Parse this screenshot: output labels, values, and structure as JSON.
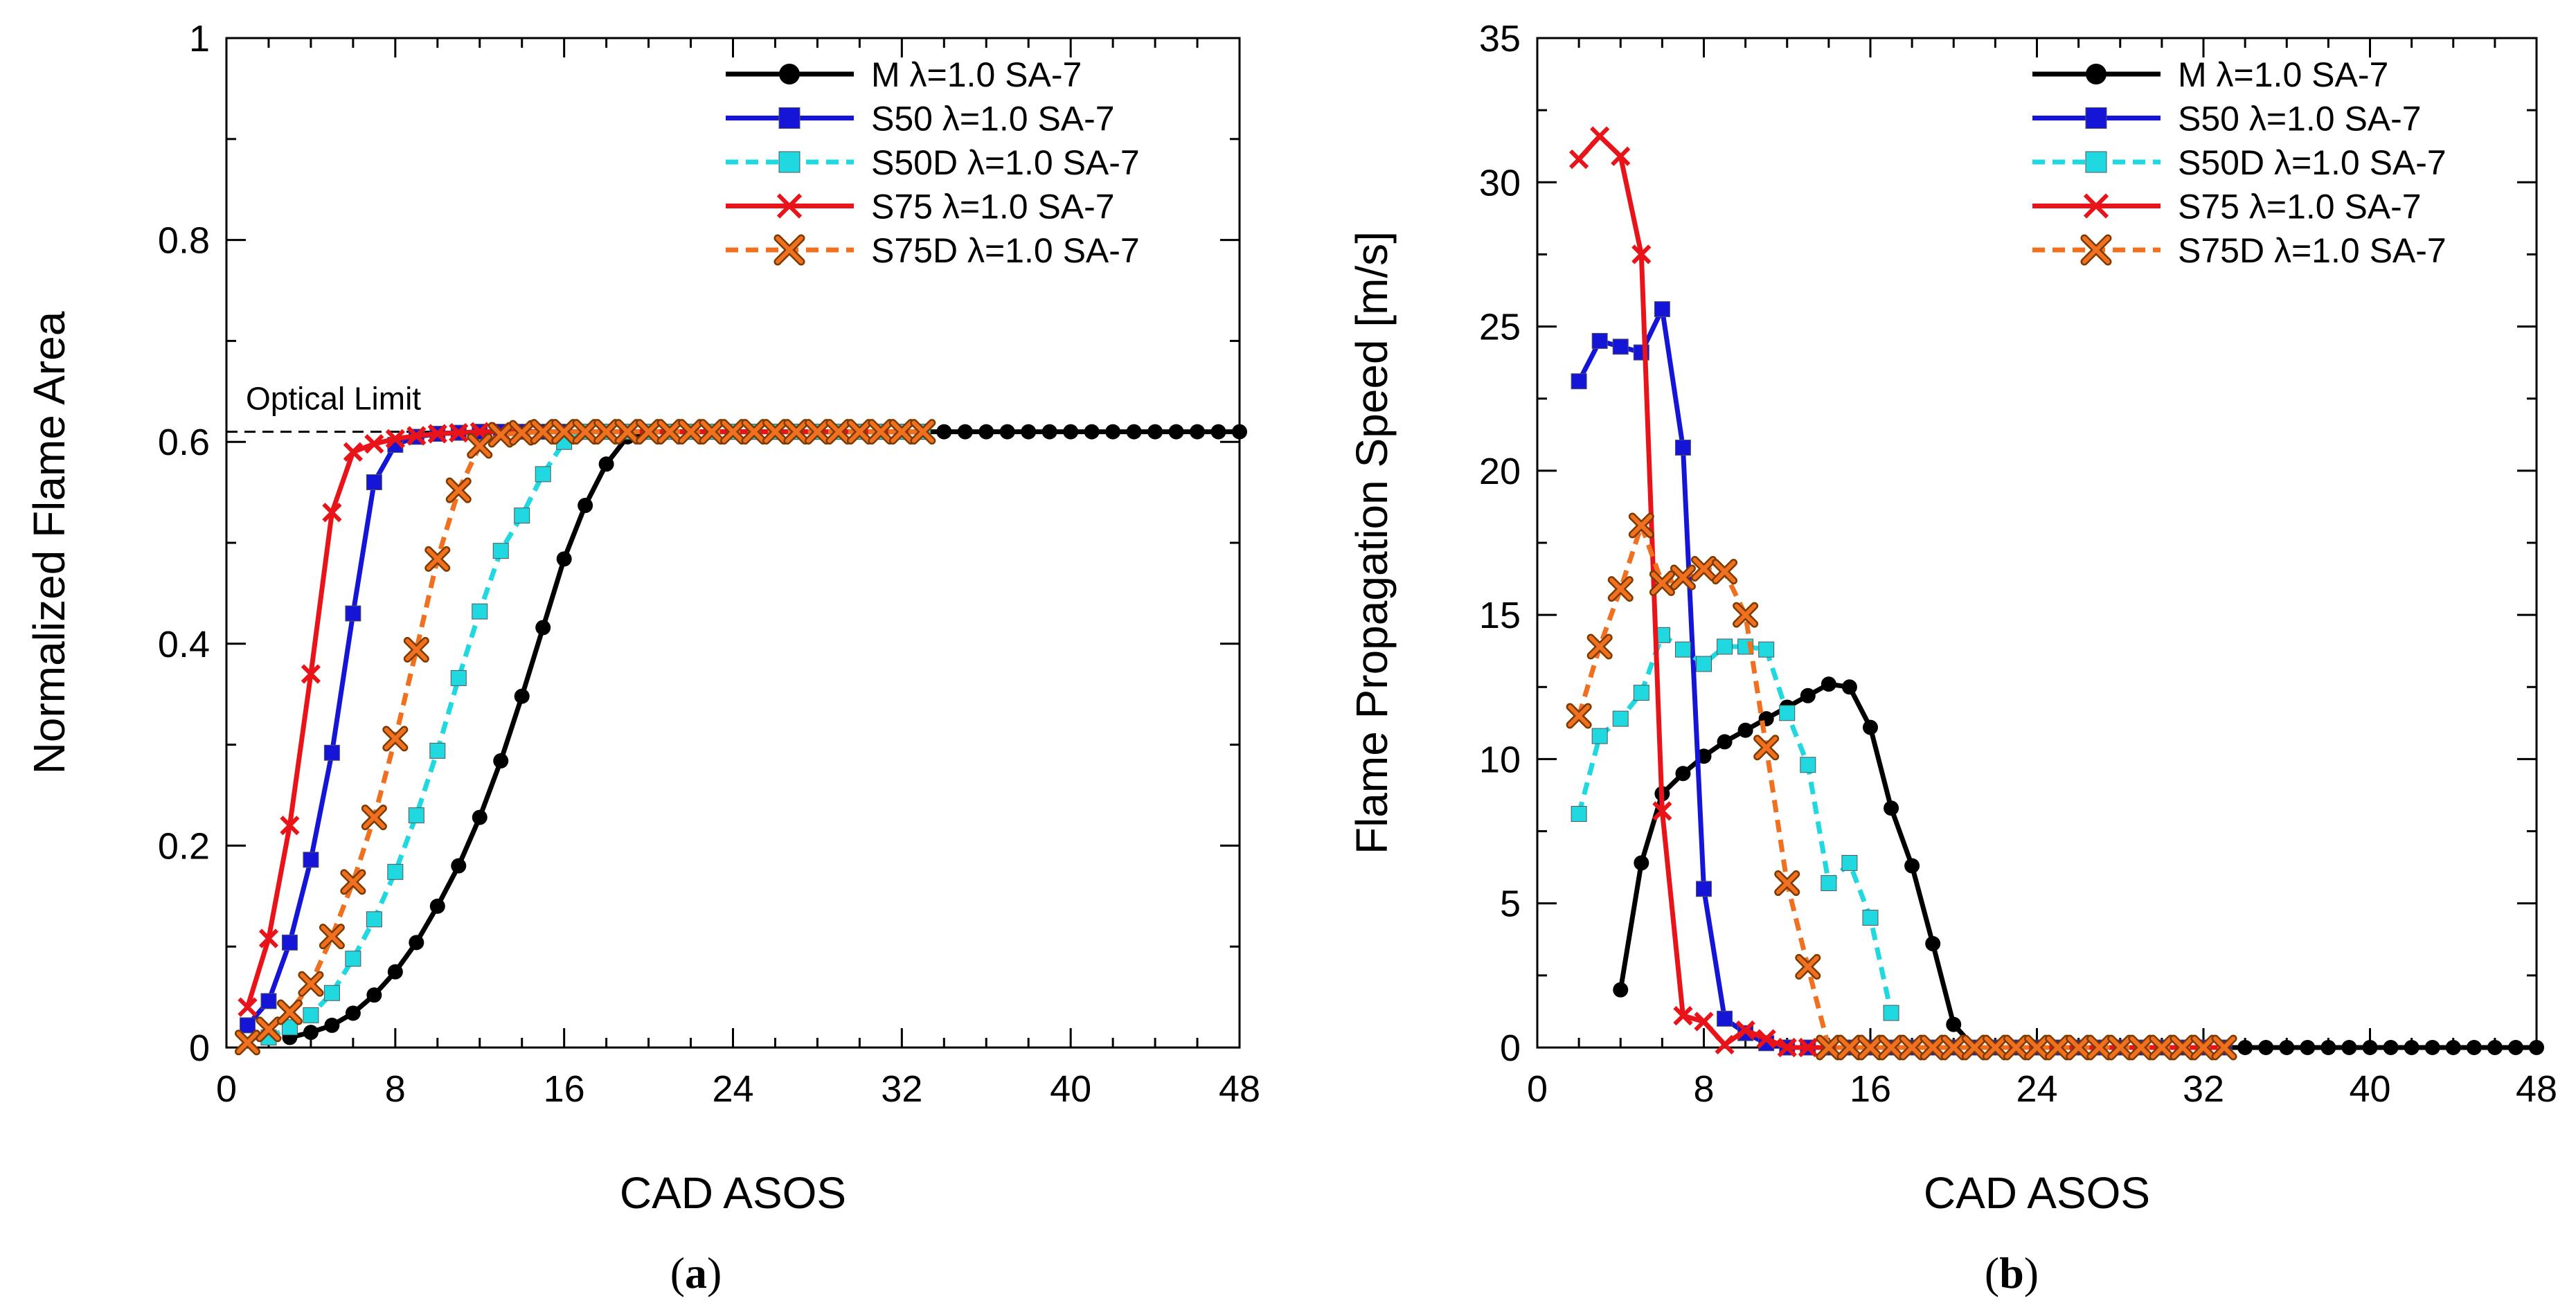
{
  "chart_data": [
    {
      "type": "line",
      "panel_label": "a",
      "title": "",
      "xlabel": "CAD ASOS",
      "ylabel": "Normalized Flame Area",
      "xlim": [
        0,
        48
      ],
      "ylim": [
        0,
        1
      ],
      "xticks": [
        "0",
        "8",
        "16",
        "24",
        "32",
        "40",
        "48"
      ],
      "yticks": [
        "0",
        "0.2",
        "0.4",
        "0.6",
        "0.8",
        "1"
      ],
      "legend_position": "top-right",
      "annotation": {
        "text": "Optical Limit",
        "y": 0.61
      },
      "series": [
        {
          "name": "M λ=1.0 SA-7",
          "color": "#000000",
          "dash": false,
          "marker": "circle",
          "x": [
            3,
            4,
            5,
            6,
            7,
            8,
            9,
            10,
            11,
            12,
            13,
            14,
            15,
            16,
            17,
            18,
            19,
            20,
            21,
            22,
            23,
            24,
            25,
            26,
            27,
            28,
            29,
            30,
            31,
            32,
            33,
            34,
            35,
            36,
            37,
            38,
            39,
            40,
            41,
            42,
            43,
            44,
            45,
            46,
            47,
            48
          ],
          "y": [
            0.01,
            0.015,
            0.022,
            0.034,
            0.052,
            0.075,
            0.104,
            0.14,
            0.18,
            0.228,
            0.284,
            0.348,
            0.416,
            0.484,
            0.537,
            0.578,
            0.605,
            0.61,
            0.61,
            0.61,
            0.61,
            0.61,
            0.61,
            0.61,
            0.61,
            0.61,
            0.61,
            0.61,
            0.61,
            0.61,
            0.61,
            0.61,
            0.61,
            0.61,
            0.61,
            0.61,
            0.61,
            0.61,
            0.61,
            0.61,
            0.61,
            0.61,
            0.61,
            0.61,
            0.61,
            0.61
          ]
        },
        {
          "name": "S50 λ=1.0 SA-7",
          "color": "#1515d8",
          "dash": false,
          "marker": "square",
          "x": [
            1,
            2,
            3,
            4,
            5,
            6,
            7,
            8,
            9,
            10,
            11,
            12,
            13,
            14,
            15,
            16,
            17,
            18,
            19,
            20,
            21,
            22,
            23,
            24,
            25,
            26,
            27,
            28,
            29,
            30,
            31,
            32,
            33
          ],
          "y": [
            0.022,
            0.046,
            0.104,
            0.186,
            0.292,
            0.43,
            0.56,
            0.597,
            0.605,
            0.608,
            0.609,
            0.61,
            0.61,
            0.61,
            0.61,
            0.61,
            0.61,
            0.61,
            0.61,
            0.61,
            0.61,
            0.61,
            0.61,
            0.61,
            0.61,
            0.61,
            0.61,
            0.61,
            0.61,
            0.61,
            0.61,
            0.61,
            0.61
          ]
        },
        {
          "name": "S50D λ=1.0 SA-7",
          "color": "#20d8e0",
          "dash": true,
          "marker": "square",
          "x": [
            2,
            3,
            4,
            5,
            6,
            7,
            8,
            9,
            10,
            11,
            12,
            13,
            14,
            15,
            16,
            17,
            18,
            19,
            20,
            21,
            22,
            23,
            24,
            25,
            26,
            27,
            28,
            29,
            30,
            31,
            32,
            33
          ],
          "y": [
            0.01,
            0.02,
            0.032,
            0.054,
            0.088,
            0.127,
            0.174,
            0.23,
            0.294,
            0.366,
            0.432,
            0.492,
            0.527,
            0.568,
            0.6,
            0.61,
            0.61,
            0.61,
            0.61,
            0.61,
            0.61,
            0.61,
            0.61,
            0.61,
            0.61,
            0.61,
            0.61,
            0.61,
            0.61,
            0.61,
            0.61,
            0.61
          ]
        },
        {
          "name": "S75 λ=1.0 SA-7",
          "color": "#e8141a",
          "dash": false,
          "marker": "x",
          "x": [
            1,
            2,
            3,
            4,
            5,
            6,
            7,
            8,
            9,
            10,
            11,
            12,
            13,
            14,
            15,
            16,
            17,
            18,
            19,
            20,
            21,
            22,
            23,
            24,
            25,
            26,
            27,
            28,
            29,
            30,
            31,
            32,
            33
          ],
          "y": [
            0.04,
            0.108,
            0.22,
            0.37,
            0.53,
            0.59,
            0.598,
            0.603,
            0.606,
            0.608,
            0.609,
            0.61,
            0.61,
            0.61,
            0.61,
            0.61,
            0.61,
            0.61,
            0.61,
            0.61,
            0.61,
            0.61,
            0.61,
            0.61,
            0.61,
            0.61,
            0.61,
            0.61,
            0.61,
            0.61,
            0.61,
            0.61,
            0.61
          ]
        },
        {
          "name": "S75D λ=1.0 SA-7",
          "color": "#f07020",
          "dash": true,
          "marker": "xbox",
          "x": [
            1,
            2,
            3,
            4,
            5,
            6,
            7,
            8,
            9,
            10,
            11,
            12,
            13,
            14,
            15,
            16,
            17,
            18,
            19,
            20,
            21,
            22,
            23,
            24,
            25,
            26,
            27,
            28,
            29,
            30,
            31,
            32,
            33
          ],
          "y": [
            0.005,
            0.018,
            0.035,
            0.063,
            0.11,
            0.164,
            0.228,
            0.306,
            0.394,
            0.484,
            0.552,
            0.596,
            0.607,
            0.609,
            0.61,
            0.61,
            0.61,
            0.61,
            0.61,
            0.61,
            0.61,
            0.61,
            0.61,
            0.61,
            0.61,
            0.61,
            0.61,
            0.61,
            0.61,
            0.61,
            0.61,
            0.61,
            0.61
          ]
        }
      ]
    },
    {
      "type": "line",
      "panel_label": "b",
      "title": "",
      "xlabel": "CAD ASOS",
      "ylabel": "Flame Propagation Speed [m/s]",
      "xlim": [
        0,
        48
      ],
      "ylim": [
        0,
        35
      ],
      "xticks": [
        "0",
        "8",
        "16",
        "24",
        "32",
        "40",
        "48"
      ],
      "yticks": [
        "0",
        "5",
        "10",
        "15",
        "20",
        "25",
        "30",
        "35"
      ],
      "legend_position": "top-right",
      "series": [
        {
          "name": "M λ=1.0 SA-7",
          "color": "#000000",
          "dash": false,
          "marker": "circle",
          "x": [
            4,
            5,
            6,
            7,
            8,
            9,
            10,
            11,
            12,
            13,
            14,
            15,
            16,
            17,
            18,
            19,
            20,
            21,
            22,
            23,
            24,
            25,
            26,
            27,
            28,
            29,
            30,
            31,
            32,
            33,
            34,
            35,
            36,
            37,
            38,
            39,
            40,
            41,
            42,
            43,
            44,
            45,
            46,
            47,
            48
          ],
          "y": [
            2,
            6.4,
            8.8,
            9.5,
            10.1,
            10.6,
            11,
            11.4,
            11.8,
            12.2,
            12.6,
            12.5,
            11.1,
            8.3,
            6.3,
            3.6,
            0.8,
            0,
            0,
            0,
            0,
            0,
            0,
            0,
            0,
            0,
            0,
            0,
            0,
            0,
            0,
            0,
            0,
            0,
            0,
            0,
            0,
            0,
            0,
            0,
            0,
            0,
            0,
            0,
            0
          ]
        },
        {
          "name": "S50 λ=1.0 SA-7",
          "color": "#1515d8",
          "dash": false,
          "marker": "square",
          "x": [
            2,
            3,
            4,
            5,
            6,
            7,
            8,
            9,
            10,
            11,
            12,
            13,
            14,
            15,
            16,
            17,
            18,
            19,
            20,
            21,
            22,
            23,
            24,
            25,
            26,
            27,
            28,
            29,
            30,
            31,
            32,
            33
          ],
          "y": [
            23.1,
            24.5,
            24.3,
            24.1,
            25.6,
            20.8,
            5.5,
            1,
            0.5,
            0.15,
            0,
            0,
            0,
            0,
            0,
            0,
            0,
            0,
            0,
            0,
            0,
            0,
            0,
            0,
            0,
            0,
            0,
            0,
            0,
            0,
            0,
            0
          ]
        },
        {
          "name": "S50D λ=1.0 SA-7",
          "color": "#20d8e0",
          "dash": true,
          "marker": "square",
          "x": [
            2,
            3,
            4,
            5,
            6,
            7,
            8,
            9,
            10,
            11,
            12,
            13,
            14,
            15,
            16,
            17
          ],
          "y": [
            8.1,
            10.8,
            11.4,
            12.3,
            14.3,
            13.8,
            13.3,
            13.9,
            13.9,
            13.8,
            11.6,
            9.8,
            5.7,
            6.4,
            4.5,
            1.2
          ]
        },
        {
          "name": "S75 λ=1.0 SA-7",
          "color": "#e8141a",
          "dash": false,
          "marker": "x",
          "x": [
            2,
            3,
            4,
            5,
            6,
            7,
            8,
            9,
            10,
            11,
            12,
            13,
            14,
            15,
            16,
            17,
            18,
            19,
            20,
            21,
            22,
            23,
            24,
            25,
            26,
            27,
            28,
            29,
            30,
            31,
            32,
            33
          ],
          "y": [
            30.8,
            31.6,
            30.9,
            27.5,
            8.2,
            1.1,
            0.9,
            0.1,
            0.6,
            0.3,
            0,
            0,
            0,
            0,
            0,
            0,
            0,
            0,
            0,
            0,
            0,
            0,
            0,
            0,
            0,
            0,
            0,
            0,
            0,
            0,
            0,
            0
          ]
        },
        {
          "name": "S75D λ=1.0 SA-7",
          "color": "#f07020",
          "dash": true,
          "marker": "xbox",
          "x": [
            2,
            3,
            4,
            5,
            6,
            7,
            8,
            9,
            10,
            11,
            12,
            13,
            14,
            15,
            16,
            17,
            18,
            19,
            20,
            21,
            22,
            23,
            24,
            25,
            26,
            27,
            28,
            29,
            30,
            31,
            32,
            33
          ],
          "y": [
            11.5,
            13.9,
            15.9,
            18.1,
            16.1,
            16.3,
            16.6,
            16.5,
            15,
            10.4,
            5.7,
            2.8,
            0,
            0,
            0,
            0,
            0,
            0,
            0,
            0,
            0,
            0,
            0,
            0,
            0,
            0,
            0,
            0,
            0,
            0,
            0,
            0
          ]
        }
      ]
    }
  ]
}
